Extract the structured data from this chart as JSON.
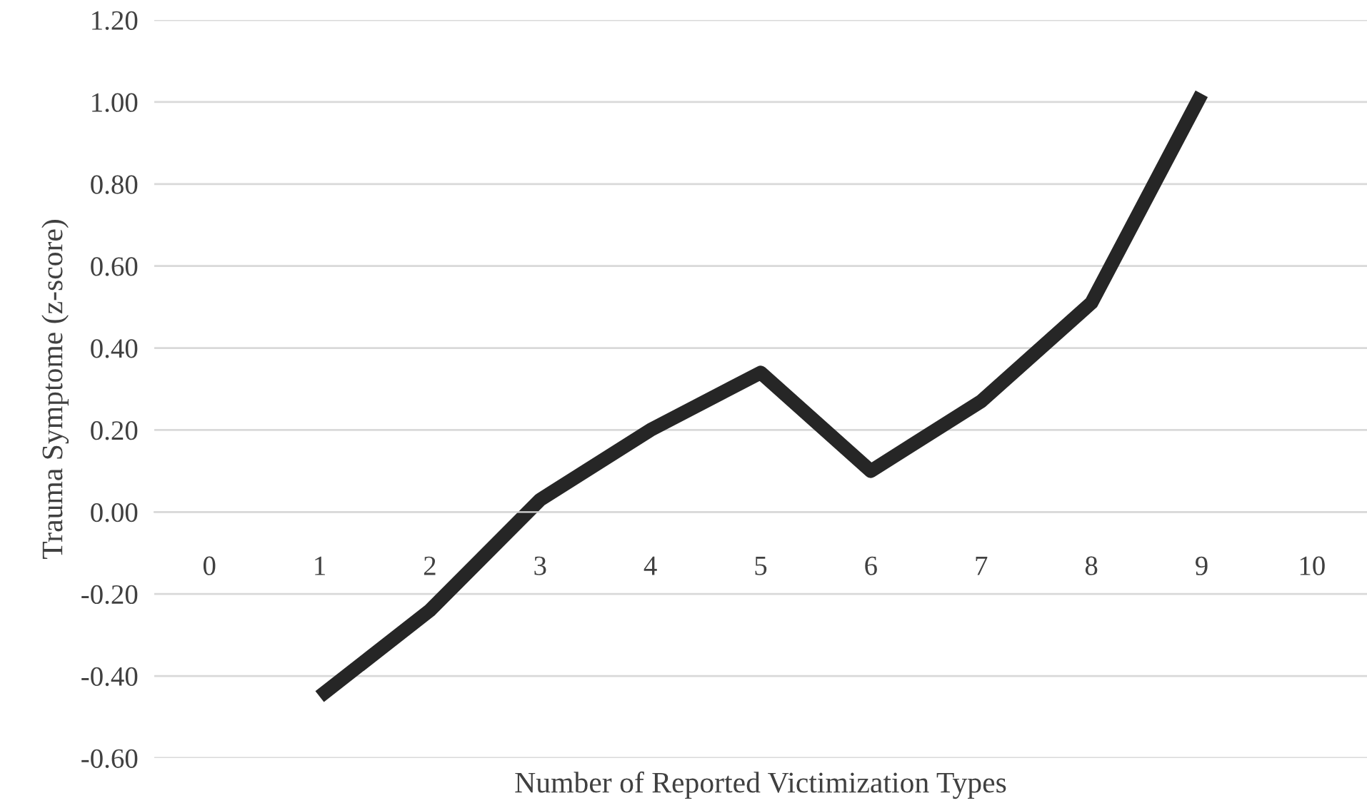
{
  "chart_data": {
    "type": "line",
    "xlabel": "Number of Reported Victimization Types",
    "ylabel": "Trauma Symptome (z-score)",
    "categories": [
      "0",
      "1",
      "2",
      "3",
      "4",
      "5",
      "6",
      "7",
      "8",
      "9",
      "10"
    ],
    "series": [
      {
        "color": "#262626",
        "values": [
          null,
          -0.45,
          -0.24,
          0.03,
          0.2,
          0.34,
          0.1,
          0.27,
          0.51,
          1.02,
          null
        ]
      }
    ],
    "ylim": [
      -0.6,
      1.2
    ],
    "yticks": [
      {
        "value": -0.6,
        "label": "-0.60"
      },
      {
        "value": -0.4,
        "label": "-0.40"
      },
      {
        "value": -0.2,
        "label": "-0.20"
      },
      {
        "value": 0,
        "label": "0.00"
      },
      {
        "value": 0.2,
        "label": "0.20"
      },
      {
        "value": 0.4,
        "label": "0.40"
      },
      {
        "value": 0.6,
        "label": "0.60"
      },
      {
        "value": 0.8,
        "label": "0.80"
      },
      {
        "value": 1.0,
        "label": "1.00"
      },
      {
        "value": 1.2,
        "label": "1.20"
      }
    ],
    "grid": "y",
    "marker": "none",
    "line_style": "solid"
  }
}
